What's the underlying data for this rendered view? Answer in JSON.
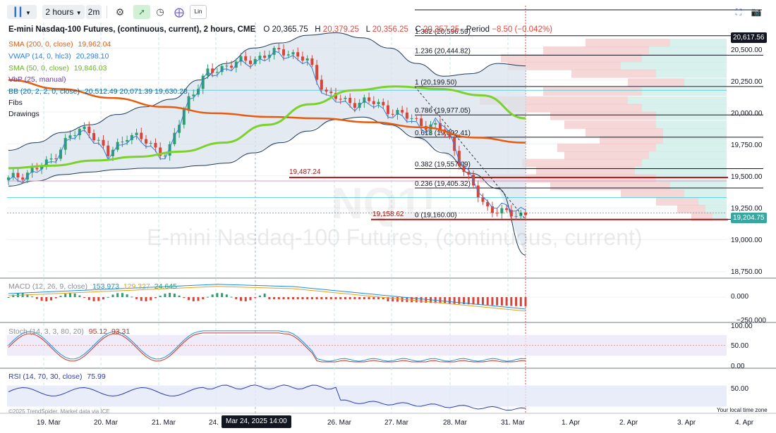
{
  "toolbar": {
    "chart_type_icon": "candles-icon",
    "interval": "2 hours",
    "interval_alt": "2m",
    "icons": [
      "settings-icon",
      "chart-style-icon",
      "clock-icon",
      "crosshair-icon",
      "lin-scale-icon",
      "fullscreen-icon",
      "camera-icon"
    ],
    "lin_label": "Lin"
  },
  "header": {
    "title": "E-mini Nasdaq-100 Futures, (continuous, current), 2 hours, CME",
    "o_label": "O",
    "o": "20,365.75",
    "h_label": "H",
    "h": "20,379.25",
    "l_label": "L",
    "l": "20,356.25",
    "c_label": "C",
    "c": "20,357.25",
    "period_label": "Period",
    "period": "−8.50 (−0.042%)"
  },
  "studies": [
    {
      "name": "SMA (200, 0, close)",
      "value": "19,962.04",
      "color": "#e85a0c"
    },
    {
      "name": "VWAP (14, 0, hlc3)",
      "value": "20,298.10",
      "color": "#2f7fe0"
    },
    {
      "name": "SMA (50, 0, close)",
      "value": "19,846.03",
      "color": "#7cd12a"
    },
    {
      "name": "VbP (25, manual)",
      "value": "",
      "color": "#6b3fa0"
    },
    {
      "name": "BB (20, 2, 2, 0, close)",
      "value": "20,512.49 20,071.39 19,630.28",
      "color": "#1e5a8a"
    },
    {
      "name": "Fibs",
      "value": "",
      "color": "#131722"
    },
    {
      "name": "Drawings",
      "value": "",
      "color": "#131722"
    }
  ],
  "watermark": {
    "symbol": "NQ1!",
    "name": "E-mini Nasdaq-100 Futures, (continuous, current)"
  },
  "price_axis": [
    "20,500.00",
    "20,250.00",
    "20,000.00",
    "19,750.00",
    "19,500.00",
    "19,250.00",
    "19,000.00",
    "18,750.00"
  ],
  "price_tags": {
    "high": "20,617.56",
    "last": "19,204.75"
  },
  "fib_levels": [
    {
      "label": "1.382 (20,596.59)",
      "price": 20596.59
    },
    {
      "label": "1.236 (20,444.82)",
      "price": 20444.82
    },
    {
      "label": "1 (20,199.50)",
      "price": 20199.5
    },
    {
      "label": "0.786 (19,977.05)",
      "price": 19977.05
    },
    {
      "label": "0.618 (19,802.41)",
      "price": 19802.41
    },
    {
      "label": "0.382 (19,557.09)",
      "price": 19557.09
    },
    {
      "label": "0.236 (19,405.32)",
      "price": 19405.32
    },
    {
      "label": "0 (19,160.00)",
      "price": 19160.0
    }
  ],
  "hlines": [
    {
      "label": "19,487.24",
      "price": 19487.24
    },
    {
      "label": "19,158.62",
      "price": 19158.62
    }
  ],
  "macd": {
    "label": "MACD (12, 26, 9, close)",
    "v1": "153.973",
    "v2": "129.327",
    "v3": "24.645",
    "axis": [
      "0.000",
      "−250.000"
    ]
  },
  "stoch": {
    "label": "Stoch (14, 3, 3, 80, 20)",
    "v1": "95.12",
    "v2": "93.31",
    "axis": [
      "100.00",
      "50.00",
      "0.00"
    ]
  },
  "rsi": {
    "label": "RSI (14, 70, 30, close)",
    "v1": "75.99",
    "axis": [
      "50.00"
    ]
  },
  "dates": [
    "19. Mar",
    "20. Mar",
    "21. Mar",
    "24.",
    "26. Mar",
    "27. Mar",
    "28. Mar",
    "31. Mar",
    "1. Apr",
    "2. Apr",
    "3. Apr",
    "4. Apr"
  ],
  "cursor_date": "Mar 24, 2025 14:00",
  "footer": {
    "copyright": "©2025 TrendSpider. Market data via ICE",
    "timezone": "Your local time zone"
  },
  "chart_data": {
    "type": "candlestick",
    "title": "E-mini Nasdaq-100 Futures, (continuous, current), 2 hours, CME",
    "ylim": [
      18700,
      20700
    ],
    "close_path": [
      {
        "x": "19. Mar",
        "y": 19470
      },
      {
        "x": "19. Mar",
        "y": 19530
      },
      {
        "x": "19. Mar",
        "y": 19600
      },
      {
        "x": "20. Mar",
        "y": 19800
      },
      {
        "x": "20. Mar",
        "y": 19880
      },
      {
        "x": "20. Mar",
        "y": 19660
      },
      {
        "x": "21. Mar",
        "y": 19830
      },
      {
        "x": "21. Mar",
        "y": 19760
      },
      {
        "x": "21. Mar",
        "y": 19660
      },
      {
        "x": "24.",
        "y": 20100
      },
      {
        "x": "24.",
        "y": 20300
      },
      {
        "x": "24.",
        "y": 20370
      },
      {
        "x": "24.",
        "y": 20400
      },
      {
        "x": "24.",
        "y": 20450
      },
      {
        "x": "24.",
        "y": 20480
      },
      {
        "x": "26. Mar",
        "y": 20400
      },
      {
        "x": "26. Mar",
        "y": 20150
      },
      {
        "x": "26. Mar",
        "y": 20070
      },
      {
        "x": "27. Mar",
        "y": 20090
      },
      {
        "x": "27. Mar",
        "y": 20030
      },
      {
        "x": "27. Mar",
        "y": 19960
      },
      {
        "x": "28. Mar",
        "y": 19900
      },
      {
        "x": "28. Mar",
        "y": 19850
      },
      {
        "x": "28. Mar",
        "y": 19500
      },
      {
        "x": "31. Mar",
        "y": 19260
      },
      {
        "x": "31. Mar",
        "y": 19200
      },
      {
        "x": "31. Mar",
        "y": 19205
      }
    ],
    "sma200": [
      20250,
      20180,
      20110,
      20040,
      19990,
      19962,
      19950,
      19920,
      19880,
      19800,
      19760
    ],
    "sma50": [
      19560,
      19580,
      19620,
      19650,
      19690,
      19760,
      19900,
      20060,
      20170,
      20200,
      20180,
      20130,
      19950
    ],
    "bb_upper": [
      19700,
      19840,
      19980,
      20100,
      20380,
      20540,
      20620,
      20500,
      20280,
      20380,
      20360
    ],
    "bb_lower": [
      19420,
      19510,
      19550,
      19560,
      19600,
      19760,
      19940,
      19900,
      19680,
      19400,
      18880
    ],
    "macd_axis": [
      0,
      -250
    ],
    "stoch_axis": [
      0,
      50,
      100
    ],
    "rsi_axis": [
      50
    ]
  }
}
